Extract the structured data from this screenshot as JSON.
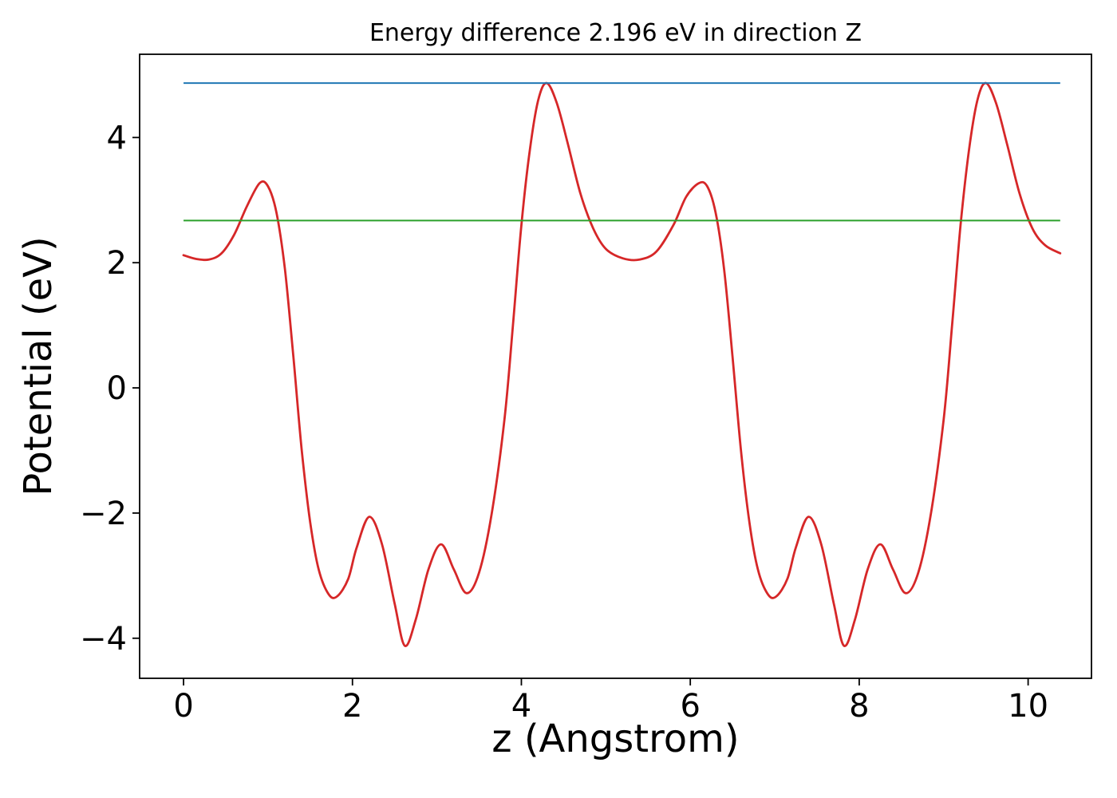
{
  "chart_data": {
    "type": "line",
    "title": "Energy difference 2.196 eV in direction Z",
    "xlabel": "z (Angstrom)",
    "ylabel": "Potential (eV)",
    "xlim": [
      -0.52,
      10.75
    ],
    "ylim": [
      -4.64,
      5.33
    ],
    "xticks": [
      0,
      2,
      4,
      6,
      8,
      10
    ],
    "yticks": [
      -4,
      -2,
      0,
      2,
      4
    ],
    "grid": false,
    "legend": "none",
    "energy_difference_eV": 2.196,
    "direction": "Z",
    "series": [
      {
        "name": "potential-curve",
        "type": "curve",
        "color": "#d62728",
        "points": [
          [
            0.0,
            2.12
          ],
          [
            0.15,
            2.06
          ],
          [
            0.3,
            2.05
          ],
          [
            0.45,
            2.15
          ],
          [
            0.6,
            2.45
          ],
          [
            0.75,
            2.9
          ],
          [
            0.9,
            3.27
          ],
          [
            1.0,
            3.22
          ],
          [
            1.1,
            2.8
          ],
          [
            1.2,
            1.9
          ],
          [
            1.3,
            0.5
          ],
          [
            1.4,
            -1.0
          ],
          [
            1.5,
            -2.15
          ],
          [
            1.6,
            -2.9
          ],
          [
            1.72,
            -3.3
          ],
          [
            1.82,
            -3.33
          ],
          [
            1.95,
            -3.05
          ],
          [
            2.05,
            -2.55
          ],
          [
            2.2,
            -2.06
          ],
          [
            2.35,
            -2.5
          ],
          [
            2.5,
            -3.45
          ],
          [
            2.62,
            -4.12
          ],
          [
            2.75,
            -3.7
          ],
          [
            2.9,
            -2.9
          ],
          [
            3.05,
            -2.5
          ],
          [
            3.2,
            -2.9
          ],
          [
            3.35,
            -3.28
          ],
          [
            3.5,
            -2.95
          ],
          [
            3.65,
            -2.0
          ],
          [
            3.8,
            -0.5
          ],
          [
            3.9,
            1.0
          ],
          [
            4.0,
            2.6
          ],
          [
            4.1,
            3.8
          ],
          [
            4.2,
            4.6
          ],
          [
            4.3,
            4.87
          ],
          [
            4.42,
            4.55
          ],
          [
            4.55,
            3.9
          ],
          [
            4.7,
            3.1
          ],
          [
            4.85,
            2.55
          ],
          [
            5.0,
            2.22
          ],
          [
            5.2,
            2.07
          ],
          [
            5.4,
            2.05
          ],
          [
            5.6,
            2.18
          ],
          [
            5.8,
            2.6
          ],
          [
            5.95,
            3.05
          ],
          [
            6.1,
            3.27
          ],
          [
            6.2,
            3.22
          ],
          [
            6.3,
            2.8
          ],
          [
            6.4,
            1.9
          ],
          [
            6.5,
            0.5
          ],
          [
            6.6,
            -1.0
          ],
          [
            6.7,
            -2.15
          ],
          [
            6.8,
            -2.9
          ],
          [
            6.92,
            -3.3
          ],
          [
            7.02,
            -3.33
          ],
          [
            7.15,
            -3.05
          ],
          [
            7.25,
            -2.55
          ],
          [
            7.4,
            -2.06
          ],
          [
            7.55,
            -2.5
          ],
          [
            7.7,
            -3.45
          ],
          [
            7.82,
            -4.12
          ],
          [
            7.95,
            -3.7
          ],
          [
            8.1,
            -2.9
          ],
          [
            8.25,
            -2.5
          ],
          [
            8.4,
            -2.9
          ],
          [
            8.55,
            -3.28
          ],
          [
            8.7,
            -2.95
          ],
          [
            8.85,
            -2.0
          ],
          [
            9.0,
            -0.5
          ],
          [
            9.1,
            1.0
          ],
          [
            9.2,
            2.6
          ],
          [
            9.3,
            3.8
          ],
          [
            9.4,
            4.6
          ],
          [
            9.5,
            4.87
          ],
          [
            9.62,
            4.55
          ],
          [
            9.75,
            3.9
          ],
          [
            9.9,
            3.1
          ],
          [
            10.05,
            2.55
          ],
          [
            10.2,
            2.28
          ],
          [
            10.38,
            2.15
          ]
        ]
      },
      {
        "name": "upper-level-line",
        "type": "hline",
        "color": "#1f77b4",
        "y": 4.87,
        "x_range": [
          0,
          10.38
        ]
      },
      {
        "name": "lower-level-line",
        "type": "hline",
        "color": "#2ca02c",
        "y": 2.674,
        "x_range": [
          0,
          10.38
        ]
      }
    ]
  }
}
